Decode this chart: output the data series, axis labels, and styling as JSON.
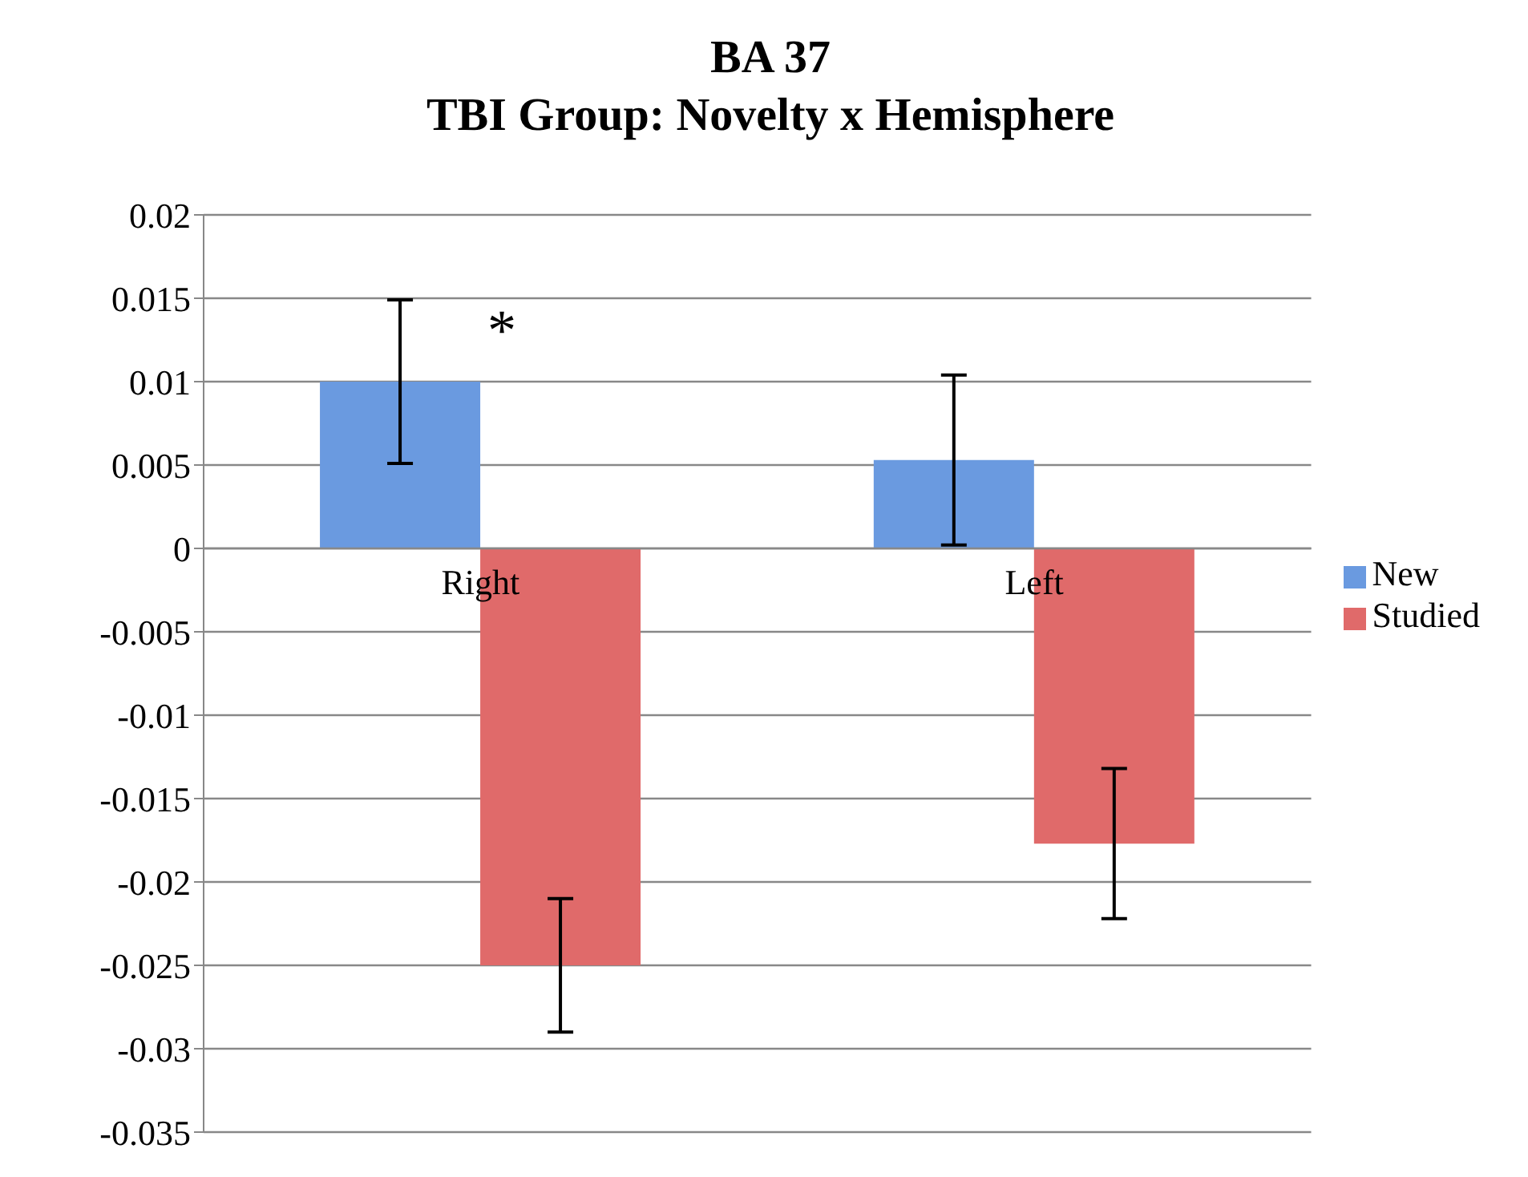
{
  "chart_data": {
    "type": "bar",
    "title": "BA 37\nTBI Group:  Novelty x Hemisphere",
    "categories": [
      "Right",
      "Left"
    ],
    "series": [
      {
        "name": "New",
        "color": "#6a9ae0",
        "values": [
          0.01,
          0.0053
        ],
        "errors": [
          0.0049,
          0.0051
        ]
      },
      {
        "name": "Studied",
        "color": "#e06a6a",
        "values": [
          -0.025,
          -0.0177
        ],
        "errors": [
          0.004,
          0.0045
        ]
      }
    ],
    "ylim": [
      -0.035,
      0.02
    ],
    "yticks": [
      -0.035,
      -0.03,
      -0.025,
      -0.02,
      -0.015,
      -0.01,
      -0.005,
      0,
      0.005,
      0.01,
      0.015,
      0.02
    ],
    "grid": "y",
    "legend": "right",
    "annotations": [
      "*"
    ]
  }
}
